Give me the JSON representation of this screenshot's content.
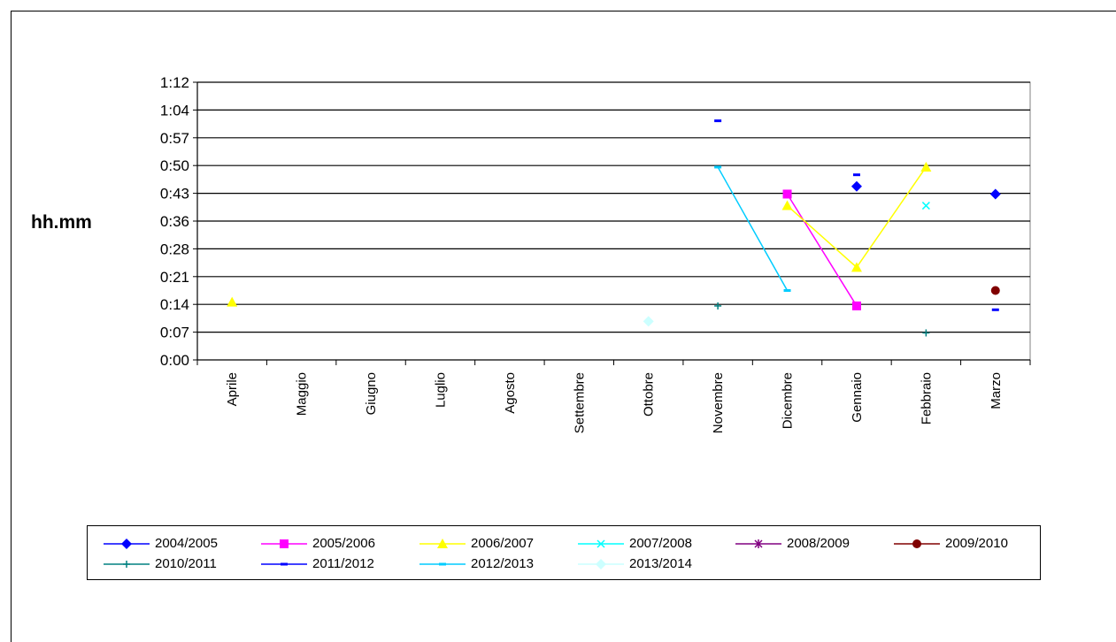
{
  "chart_data": {
    "type": "line",
    "ylabel": "hh.mm",
    "categories": [
      "Aprile",
      "Maggio",
      "Giugno",
      "Luglio",
      "Agosto",
      "Settembre",
      "Ottobre",
      "Novembre",
      "Dicembre",
      "Gennaio",
      "Febbraio",
      "Marzo"
    ],
    "y_ticks": [
      "0:00",
      "0:07",
      "0:14",
      "0:21",
      "0:28",
      "0:36",
      "0:43",
      "0:50",
      "0:57",
      "1:04",
      "1:12"
    ],
    "y_unit": "minutes",
    "ylim": [
      0,
      72
    ],
    "grid": true,
    "legend_position": "bottom",
    "series": [
      {
        "name": "2004/2005",
        "color": "#0000FF",
        "marker": "diamond",
        "values": [
          null,
          null,
          null,
          null,
          null,
          null,
          null,
          null,
          null,
          45,
          null,
          43
        ]
      },
      {
        "name": "2005/2006",
        "color": "#FF00FF",
        "marker": "square",
        "values": [
          null,
          null,
          null,
          null,
          null,
          null,
          null,
          null,
          43,
          14,
          null,
          null
        ]
      },
      {
        "name": "2006/2007",
        "color": "#FFFF00",
        "marker": "triangle",
        "values": [
          15,
          null,
          null,
          null,
          null,
          null,
          null,
          null,
          40,
          24,
          50,
          null
        ]
      },
      {
        "name": "2007/2008",
        "color": "#00FFFF",
        "marker": "x",
        "values": [
          null,
          null,
          null,
          null,
          null,
          null,
          null,
          null,
          null,
          null,
          40,
          null
        ]
      },
      {
        "name": "2008/2009",
        "color": "#800080",
        "marker": "star",
        "values": [
          null,
          null,
          null,
          null,
          null,
          null,
          null,
          null,
          null,
          null,
          null,
          null
        ]
      },
      {
        "name": "2009/2010",
        "color": "#800000",
        "marker": "circle",
        "values": [
          null,
          null,
          null,
          null,
          null,
          null,
          null,
          null,
          null,
          null,
          null,
          18
        ]
      },
      {
        "name": "2010/2011",
        "color": "#008080",
        "marker": "plus",
        "values": [
          null,
          null,
          null,
          null,
          null,
          null,
          null,
          14,
          null,
          null,
          7,
          null
        ]
      },
      {
        "name": "2011/2012",
        "color": "#0000FF",
        "marker": "dash",
        "values": [
          null,
          null,
          null,
          null,
          null,
          null,
          null,
          62,
          null,
          48,
          null,
          13
        ]
      },
      {
        "name": "2012/2013",
        "color": "#00CCFF",
        "marker": "dash",
        "values": [
          null,
          null,
          null,
          null,
          null,
          null,
          null,
          50,
          18,
          null,
          null,
          null
        ]
      },
      {
        "name": "2013/2014",
        "color": "#CCFFFF",
        "marker": "diamond",
        "values": [
          null,
          null,
          null,
          null,
          null,
          null,
          10,
          null,
          null,
          null,
          null,
          null
        ]
      }
    ]
  }
}
